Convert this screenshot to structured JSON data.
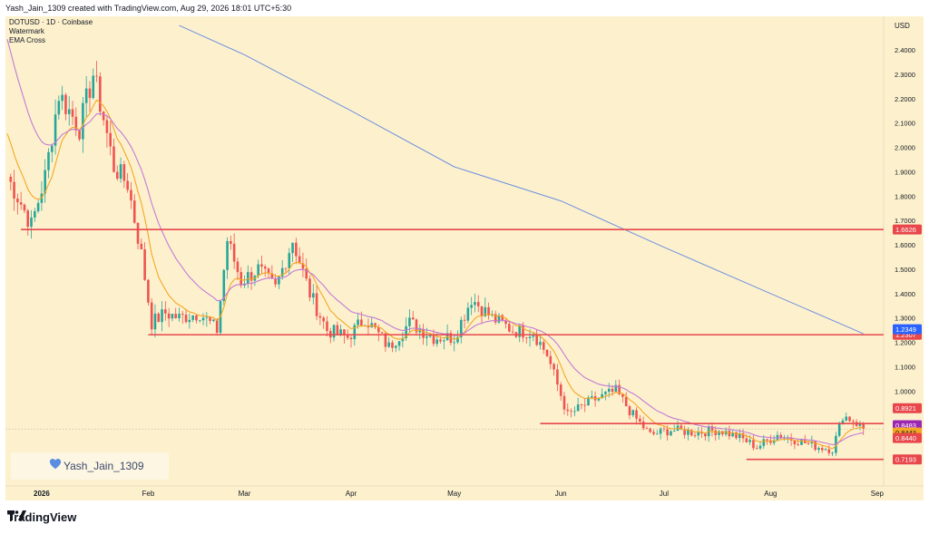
{
  "header": {
    "credit": "Yash_Jain_1309 created with TradingView.com, Aug 29, 2026 18:01 UTC+5:30"
  },
  "legend": {
    "symbol": "DOTUSD · 1D · Coinbase",
    "watermark": "Watermark",
    "indicator": "EMA Cross"
  },
  "currency": "USD",
  "watermark_text": "Yash_Jain_1309",
  "footer": {
    "brand": "TradingView"
  },
  "colors": {
    "background": "#fdf1cd",
    "up_candle": "#26a69a",
    "down_candle": "#ef5350",
    "ema_fast": "#f5a623",
    "ema_slow": "#c27ad6",
    "ema_long": "#6f8fe0",
    "level_line": "#e8474b"
  },
  "chart_data": {
    "type": "candlestick",
    "x_labels": [
      "2026",
      "Feb",
      "Mar",
      "Apr",
      "May",
      "Jun",
      "Jul",
      "Aug",
      "Sep"
    ],
    "y_ticks": [
      "2.4000",
      "2.3000",
      "2.2000",
      "2.1000",
      "2.0000",
      "1.9000",
      "1.8000",
      "1.7000",
      "1.6000",
      "1.5000",
      "1.4000",
      "1.3000",
      "1.2000",
      "1.1000",
      "1.0000",
      "0.8000"
    ],
    "ylim": [
      0.68,
      2.5
    ],
    "horizontal_levels": [
      {
        "value": 1.6626,
        "label": "1.6626",
        "color": "#e8474b",
        "start": "2025-12-26"
      },
      {
        "value": 1.2307,
        "label": "1.2307",
        "color": "#e8474b",
        "start": "2026-02-01"
      },
      {
        "value": 0.8663,
        "label": "",
        "color": "#e8474b",
        "start": "2026-05-26"
      },
      {
        "value": 0.7193,
        "label": "0.7193",
        "color": "#e8474b",
        "start": "2026-07-25"
      }
    ],
    "price_labels": [
      {
        "value": 1.2349,
        "label": "1.2349",
        "color": "#2962ff"
      },
      {
        "value": 0.8921,
        "label": "0.8921",
        "color": "#e8474b"
      },
      {
        "value": 0.8483,
        "label": "0.8483",
        "color": "#9c27b0"
      },
      {
        "value": 0.8443,
        "label": "0.8443",
        "color": "#f5a623"
      },
      {
        "value": 0.844,
        "label": "0.8440",
        "color": "#e8474b"
      }
    ],
    "waypoints": [
      [
        "2025-12-22",
        1.88
      ],
      [
        "2025-12-26",
        1.77
      ],
      [
        "2025-12-29",
        1.68
      ],
      [
        "2026-01-02",
        1.88
      ],
      [
        "2026-01-06",
        2.22
      ],
      [
        "2026-01-12",
        2.08
      ],
      [
        "2026-01-16",
        2.3
      ],
      [
        "2026-01-19",
        2.12
      ],
      [
        "2026-01-22",
        1.92
      ],
      [
        "2026-01-26",
        1.85
      ],
      [
        "2026-01-30",
        1.56
      ],
      [
        "2026-02-02",
        1.28
      ],
      [
        "2026-02-06",
        1.32
      ],
      [
        "2026-02-10",
        1.3
      ],
      [
        "2026-02-16",
        1.32
      ],
      [
        "2026-02-21",
        1.25
      ],
      [
        "2026-02-24",
        1.62
      ],
      [
        "2026-02-28",
        1.45
      ],
      [
        "2026-03-05",
        1.5
      ],
      [
        "2026-03-10",
        1.42
      ],
      [
        "2026-03-15",
        1.62
      ],
      [
        "2026-03-20",
        1.4
      ],
      [
        "2026-03-25",
        1.25
      ],
      [
        "2026-03-31",
        1.22
      ],
      [
        "2026-04-05",
        1.3
      ],
      [
        "2026-04-12",
        1.18
      ],
      [
        "2026-04-18",
        1.28
      ],
      [
        "2026-04-25",
        1.22
      ],
      [
        "2026-05-01",
        1.22
      ],
      [
        "2026-05-06",
        1.38
      ],
      [
        "2026-05-12",
        1.3
      ],
      [
        "2026-05-18",
        1.25
      ],
      [
        "2026-05-24",
        1.24
      ],
      [
        "2026-05-28",
        1.15
      ],
      [
        "2026-06-03",
        0.9
      ],
      [
        "2026-06-10",
        0.96
      ],
      [
        "2026-06-17",
        1.0
      ],
      [
        "2026-06-22",
        0.9
      ],
      [
        "2026-06-27",
        0.82
      ],
      [
        "2026-07-03",
        0.84
      ],
      [
        "2026-07-10",
        0.83
      ],
      [
        "2026-07-17",
        0.84
      ],
      [
        "2026-07-23",
        0.81
      ],
      [
        "2026-07-28",
        0.77
      ],
      [
        "2026-08-03",
        0.82
      ],
      [
        "2026-08-08",
        0.8
      ],
      [
        "2026-08-15",
        0.77
      ],
      [
        "2026-08-19",
        0.76
      ],
      [
        "2026-08-22",
        0.9
      ],
      [
        "2026-08-25",
        0.88
      ],
      [
        "2026-08-28",
        0.844
      ]
    ],
    "ema_long_points": [
      [
        "2026-02-10",
        2.5
      ],
      [
        "2026-03-01",
        2.38
      ],
      [
        "2026-04-01",
        2.15
      ],
      [
        "2026-05-01",
        1.92
      ],
      [
        "2026-06-01",
        1.78
      ],
      [
        "2026-07-01",
        1.59
      ],
      [
        "2026-08-01",
        1.4
      ],
      [
        "2026-08-28",
        1.2349
      ]
    ]
  }
}
